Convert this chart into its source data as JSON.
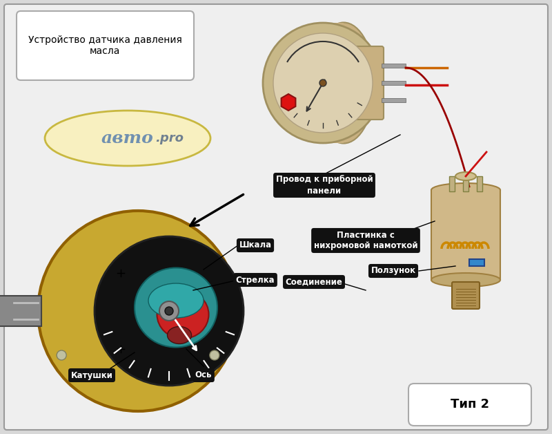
{
  "bg_outer": "#d8d8d8",
  "bg_inner": "#efefef",
  "border_color": "#aaaaaa",
  "title_text": "Устройство датчика давления\nмасла",
  "type_text": "Тип 2",
  "label_bg": "#111111",
  "label_fg": "#ffffff",
  "wire_red": "#cc1111",
  "wire_orange": "#cc6600",
  "wire_dark_red": "#990000",
  "labels": {
    "провод": "Провод к приборной\nпанели",
    "пластинка": "Пластинка с\nнихромовой намоткой",
    "ползунок": "Ползунок",
    "шкала": "Шкала",
    "стрелка": "Стрелка",
    "соединение": "Соединение",
    "катушки": "Катушки",
    "ось": "Ось"
  }
}
